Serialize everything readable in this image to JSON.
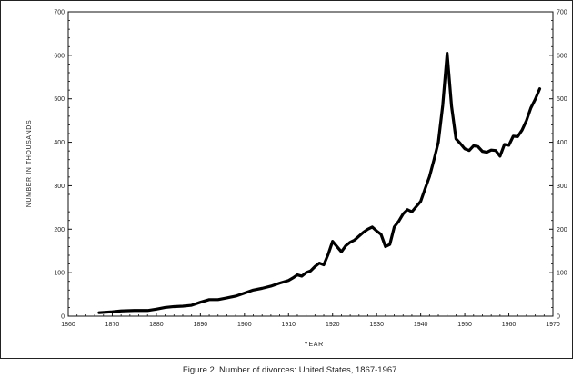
{
  "caption": "Figure 2. Number of divorces: United States, 1867-1967.",
  "chart_data": {
    "type": "line",
    "title": "",
    "xlabel": "YEAR",
    "ylabel": "NUMBER IN THOUSANDS",
    "xlim": [
      1860,
      1970
    ],
    "ylim": [
      0,
      700
    ],
    "x_ticks": [
      "1860",
      "1870",
      "1880",
      "1890",
      "1900",
      "1910",
      "1920",
      "1930",
      "1940",
      "1950",
      "1960",
      "1970"
    ],
    "y_ticks": [
      "0",
      "100",
      "200",
      "300",
      "400",
      "500",
      "600",
      "700"
    ],
    "y_ticks_right": [
      "0",
      "100",
      "200",
      "300",
      "400",
      "500",
      "600",
      "700"
    ],
    "grid": false,
    "legend": "none",
    "line_color": "#000000",
    "series": [
      {
        "x": [
          1867,
          1870,
          1872,
          1875,
          1878,
          1880,
          1882,
          1884,
          1886,
          1888,
          1890,
          1892,
          1894,
          1896,
          1898,
          1900,
          1902,
          1904,
          1906,
          1908,
          1910,
          1911,
          1912,
          1913,
          1914,
          1915,
          1916,
          1917,
          1918,
          1919,
          1920,
          1921,
          1922,
          1923,
          1924,
          1925,
          1926,
          1927,
          1928,
          1929,
          1930,
          1931,
          1932,
          1933,
          1934,
          1935,
          1936,
          1937,
          1938,
          1939,
          1940,
          1941,
          1942,
          1943,
          1944,
          1945,
          1946,
          1947,
          1948,
          1949,
          1950,
          1951,
          1952,
          1953,
          1954,
          1955,
          1956,
          1957,
          1958,
          1959,
          1960,
          1961,
          1962,
          1963,
          1964,
          1965,
          1966,
          1967
        ],
        "values": [
          8,
          10,
          12,
          13,
          13,
          16,
          20,
          22,
          23,
          25,
          32,
          38,
          38,
          42,
          46,
          53,
          60,
          64,
          69,
          76,
          82,
          88,
          95,
          92,
          100,
          104,
          114,
          122,
          118,
          142,
          172,
          160,
          148,
          162,
          170,
          175,
          184,
          193,
          200,
          205,
          196,
          188,
          160,
          165,
          205,
          218,
          235,
          245,
          240,
          252,
          264,
          293,
          321,
          359,
          400,
          485,
          605,
          483,
          408,
          397,
          385,
          381,
          392,
          390,
          379,
          377,
          382,
          381,
          368,
          395,
          393,
          414,
          413,
          428,
          450,
          479,
          499,
          523
        ]
      }
    ]
  }
}
